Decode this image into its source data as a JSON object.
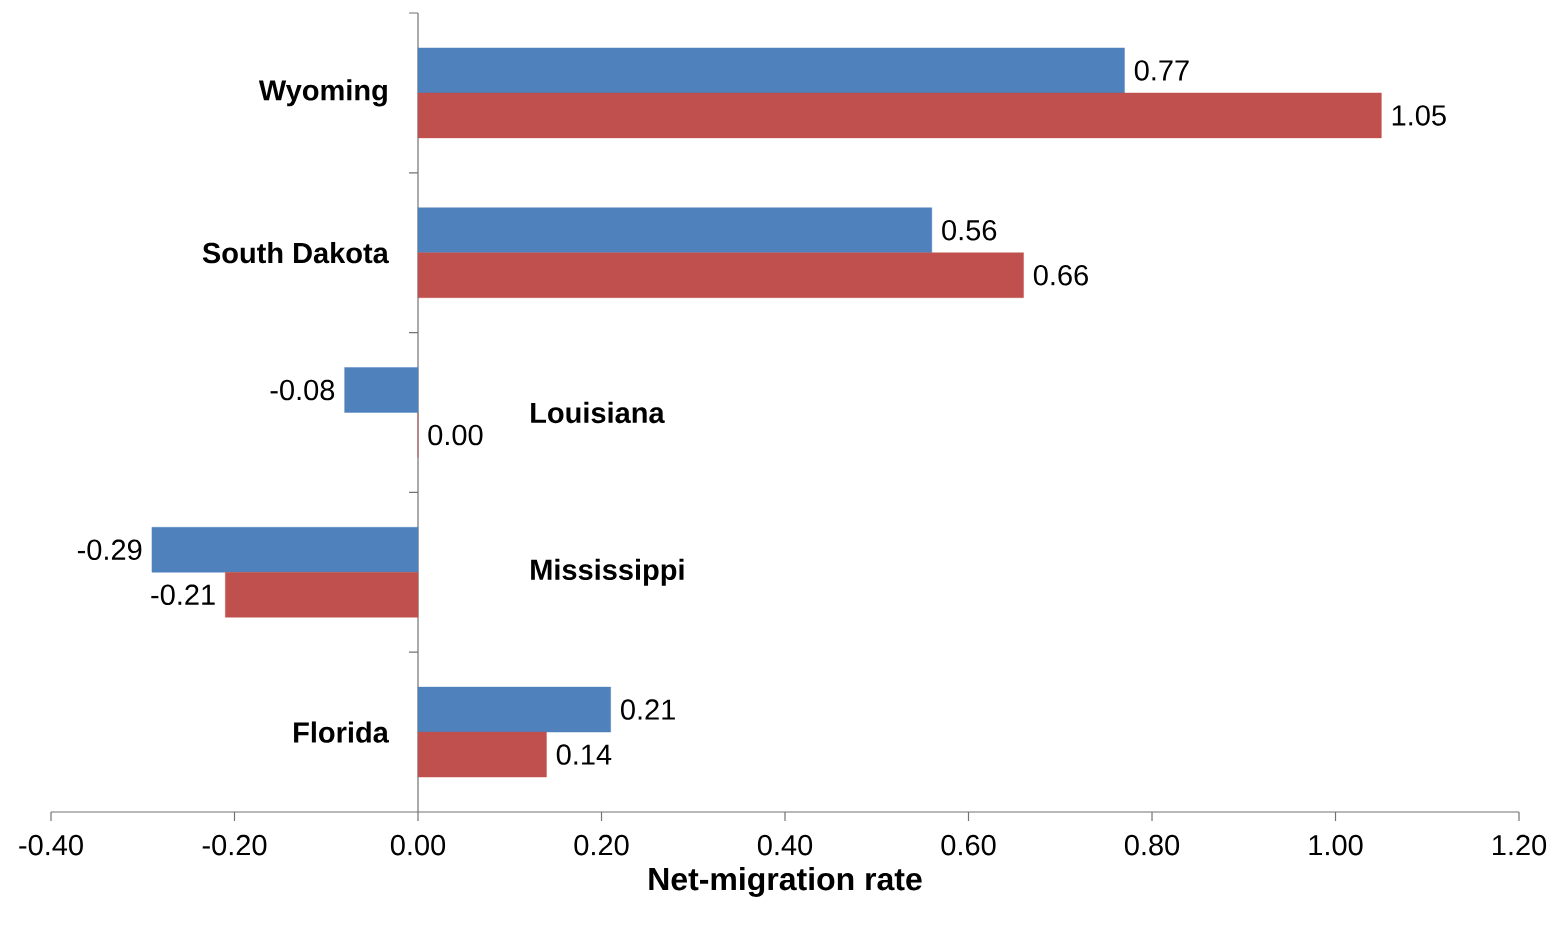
{
  "chart_data": {
    "type": "bar",
    "orientation": "horizontal",
    "xlabel": "Net-migration rate",
    "categories": [
      "Wyoming",
      "South Dakota",
      "Louisiana",
      "Mississippi",
      "Florida"
    ],
    "series": [
      {
        "color": "#4f81bd",
        "values": [
          0.77,
          0.56,
          -0.08,
          -0.29,
          0.21
        ],
        "value_labels": [
          "0.77",
          "0.56",
          "-0.08",
          "-0.29",
          "0.21"
        ]
      },
      {
        "color": "#c0504d",
        "values": [
          1.05,
          0.66,
          0.0,
          -0.21,
          0.14
        ],
        "value_labels": [
          "1.05",
          "0.66",
          "0.00",
          "-0.21",
          "0.14"
        ]
      }
    ],
    "xlim": [
      -0.4,
      1.2
    ],
    "xticks": [
      {
        "value": -0.4,
        "label": "-0.40"
      },
      {
        "value": -0.2,
        "label": "-0.20"
      },
      {
        "value": 0,
        "label": "0.00"
      },
      {
        "value": 0.2,
        "label": "0.20"
      },
      {
        "value": 0.4,
        "label": "0.40"
      },
      {
        "value": 0.6,
        "label": "0.60"
      },
      {
        "value": 0.8,
        "label": "0.80"
      },
      {
        "value": 1.0,
        "label": "1.00"
      },
      {
        "value": 1.2,
        "label": "1.20"
      }
    ],
    "grid": false
  }
}
